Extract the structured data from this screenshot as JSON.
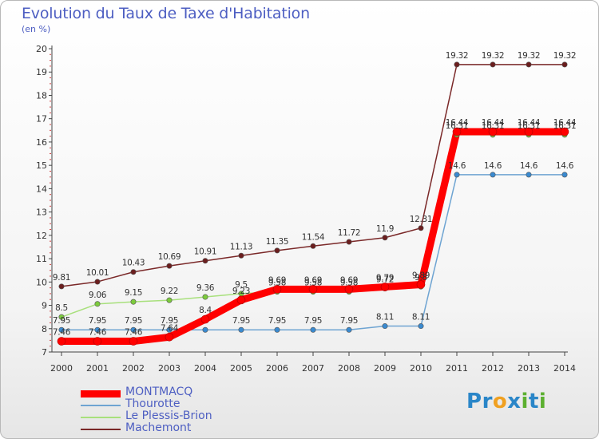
{
  "title": "Evolution du Taux de Taxe d'Habitation",
  "subtitle": "(en %)",
  "logo": {
    "letters": [
      {
        "char": "P",
        "color": "#2a86c8"
      },
      {
        "char": "r",
        "color": "#2a86c8"
      },
      {
        "char": "o",
        "color": "#f0a020"
      },
      {
        "char": "x",
        "color": "#2a86c8"
      },
      {
        "char": "i",
        "color": "#5cb030"
      },
      {
        "char": "t",
        "color": "#2a86c8"
      },
      {
        "char": "i",
        "color": "#5cb030"
      }
    ]
  },
  "chart_data": {
    "type": "line",
    "title": "Evolution du Taux de Taxe d'Habitation",
    "ylabel": "(en %)",
    "xlabel": "",
    "x": [
      "2000",
      "2001",
      "2002",
      "2003",
      "2004",
      "2005",
      "2006",
      "2007",
      "2008",
      "2009",
      "2010",
      "2011",
      "2012",
      "2013",
      "2014"
    ],
    "ylim": [
      7,
      20
    ],
    "yticks": [
      7,
      8,
      9,
      10,
      11,
      12,
      13,
      14,
      15,
      16,
      17,
      18,
      19,
      20
    ],
    "grid": false,
    "legend_position": "bottom-left",
    "series": [
      {
        "name": "MONTMACQ",
        "color": "#ff0000",
        "marker_color": "#ff0000",
        "width": 9,
        "values": [
          7.46,
          7.46,
          7.46,
          7.64,
          8.4,
          9.23,
          9.69,
          9.69,
          9.69,
          9.79,
          9.89,
          16.44,
          16.44,
          16.44,
          16.44
        ],
        "labels": [
          "7.46",
          "7.46",
          "7.46",
          "7.64",
          "8.4",
          "9.23",
          "9.69",
          "9.69",
          "9.69",
          "9.79",
          "9.89",
          "16.44",
          "16.44",
          "16.44",
          "16.44"
        ]
      },
      {
        "name": "Thourotte",
        "color": "#6ea4d2",
        "marker_color": "#3a8ad0",
        "width": 1.5,
        "values": [
          7.95,
          7.95,
          7.95,
          7.95,
          7.95,
          7.95,
          7.95,
          7.95,
          7.95,
          8.11,
          8.11,
          14.6,
          14.6,
          14.6,
          14.6
        ],
        "labels": [
          "7.95",
          "7.95",
          "7.95",
          "7.95",
          "",
          "7.95",
          "7.95",
          "7.95",
          "7.95",
          "8.11",
          "8.11",
          "14.6",
          "14.6",
          "14.6",
          "14.6"
        ]
      },
      {
        "name": "Le Plessis-Brion",
        "color": "#a8e07c",
        "marker_color": "#7ccb3c",
        "width": 1.5,
        "values": [
          8.5,
          9.06,
          9.15,
          9.22,
          9.36,
          9.5,
          9.58,
          9.58,
          9.58,
          9.72,
          9.8,
          16.31,
          16.31,
          16.31,
          16.31
        ],
        "labels": [
          "8.5",
          "9.06",
          "9.15",
          "9.22",
          "9.36",
          "9.5",
          "9.58",
          "9.58",
          "9.58",
          "9.72",
          "9.8",
          "16.31",
          "16.31",
          "16.31",
          "16.31"
        ]
      },
      {
        "name": "Machemont",
        "color": "#7a2828",
        "marker_color": "#6b1e1e",
        "width": 1.5,
        "values": [
          9.81,
          10.01,
          10.43,
          10.69,
          10.91,
          11.13,
          11.35,
          11.54,
          11.72,
          11.9,
          12.31,
          19.32,
          19.32,
          19.32,
          19.32
        ],
        "labels": [
          "9.81",
          "10.01",
          "10.43",
          "10.69",
          "10.91",
          "11.13",
          "11.35",
          "11.54",
          "11.72",
          "11.9",
          "12.31",
          "19.32",
          "19.32",
          "19.32",
          "19.32"
        ]
      }
    ]
  }
}
